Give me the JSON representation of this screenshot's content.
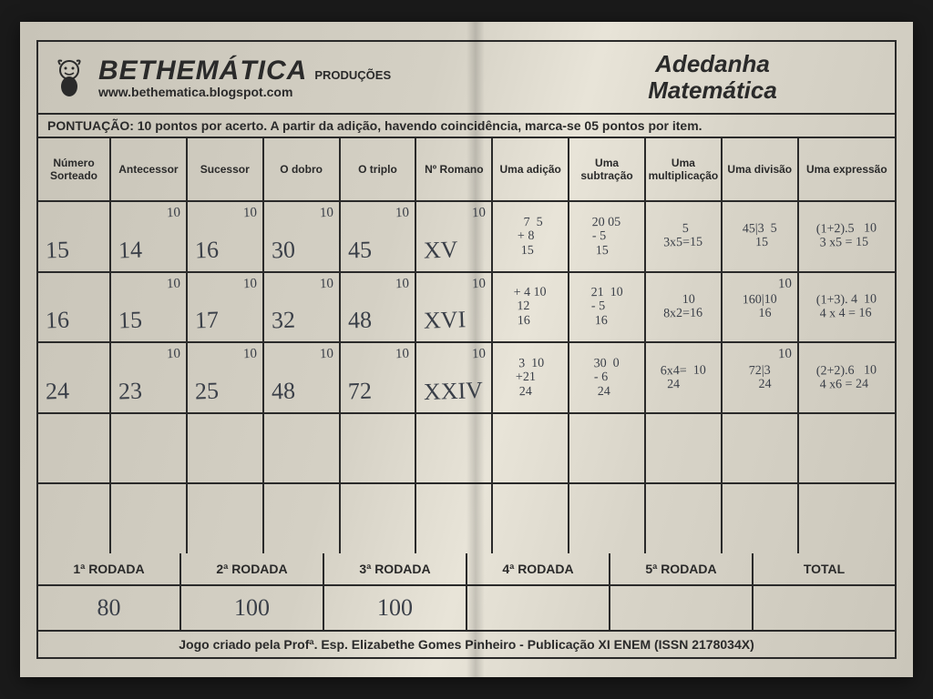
{
  "brand": {
    "name": "BETHEMÁTICA",
    "sub": "PRODUÇÕES",
    "url": "www.bethematica.blogspot.com"
  },
  "title": {
    "line1": "Adedanha",
    "line2": "Matemática"
  },
  "scoring": "PONTUAÇÃO: 10 pontos por acerto. A partir da adição, havendo coincidência, marca-se 05 pontos por item.",
  "columns": [
    "Número Sorteado",
    "Antecessor",
    "Sucessor",
    "O dobro",
    "O triplo",
    "Nº Romano",
    "Uma adição",
    "Uma subtração",
    "Uma multiplicação",
    "Uma divisão",
    "Uma expressão"
  ],
  "rows": [
    {
      "n": "15",
      "cells": [
        {
          "v": "14",
          "p": "10"
        },
        {
          "v": "16",
          "p": "10"
        },
        {
          "v": "30",
          "p": "10"
        },
        {
          "v": "45",
          "p": "10"
        },
        {
          "v": "XV",
          "p": "10"
        },
        {
          "calc": "  7  5\n+ 8\n 15",
          "p": ""
        },
        {
          "calc": "20 05\n- 5\n 15",
          "p": ""
        },
        {
          "calc": "      5\n3x5=15",
          "p": ""
        },
        {
          "calc": "45|3  5\n    15",
          "p": ""
        },
        {
          "calc": "(1+2).5   10\n 3 x5 = 15",
          "p": ""
        }
      ]
    },
    {
      "n": "16",
      "cells": [
        {
          "v": "15",
          "p": "10"
        },
        {
          "v": "17",
          "p": "10"
        },
        {
          "v": "32",
          "p": "10"
        },
        {
          "v": "48",
          "p": "10"
        },
        {
          "v": "XVI",
          "p": "10"
        },
        {
          "calc": "+ 4 10\n 12\n 16",
          "p": ""
        },
        {
          "calc": "21  10\n- 5\n 16",
          "p": ""
        },
        {
          "calc": "      10\n8x2=16",
          "p": ""
        },
        {
          "calc": "160|10\n     16",
          "p": "10"
        },
        {
          "calc": "(1+3). 4  10\n 4 x 4 = 16",
          "p": ""
        }
      ]
    },
    {
      "n": "24",
      "cells": [
        {
          "v": "23",
          "p": "10"
        },
        {
          "v": "25",
          "p": "10"
        },
        {
          "v": "48",
          "p": "10"
        },
        {
          "v": "72",
          "p": "10"
        },
        {
          "v": "XXIV",
          "p": "10"
        },
        {
          "calc": " 3  10\n+21\n 24",
          "p": ""
        },
        {
          "calc": "30  0\n- 6\n 24",
          "p": ""
        },
        {
          "calc": "6x4=  10\n  24",
          "p": ""
        },
        {
          "calc": "72|3\n   24",
          "p": "10"
        },
        {
          "calc": "(2+2).6   10\n 4 x6 = 24",
          "p": ""
        }
      ]
    }
  ],
  "rounds": {
    "labels": [
      "1ª RODADA",
      "2ª RODADA",
      "3ª RODADA",
      "4ª RODADA",
      "5ª RODADA",
      "TOTAL"
    ],
    "values": [
      "80",
      "100",
      "100",
      "",
      "",
      ""
    ]
  },
  "footer": "Jogo criado pela Profª. Esp. Elizabethe Gomes Pinheiro - Publicação XI ENEM (ISSN 2178034X)"
}
